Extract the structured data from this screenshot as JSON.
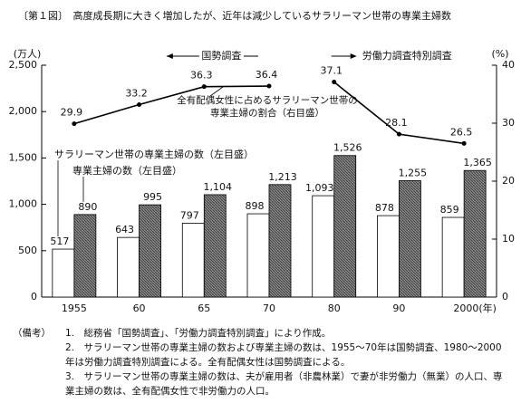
{
  "chart_data": {
    "type": "bar",
    "title": "〔第１図〕　高度成長期に大きく増加したが、近年は減少しているサラリーマン世帯の専業主婦数",
    "y_unit": "(万人)",
    "y2_unit": "(%)",
    "categories": [
      "1955",
      "60",
      "65",
      "70",
      "80",
      "90",
      "2000(年)"
    ],
    "series": [
      {
        "name": "サラリーマン世帯の専業主婦の数（左目盛）",
        "color": "#ffffff",
        "values": [
          517,
          643,
          797,
          898,
          1093,
          878,
          859
        ],
        "value_labels": [
          "517",
          "643",
          "797",
          "898",
          "1,093",
          "878",
          "859"
        ]
      },
      {
        "name": "専業主婦の数（左目盛）",
        "color": "#8a8a8a",
        "values": [
          890,
          995,
          1104,
          1213,
          1526,
          1255,
          1365
        ],
        "value_labels": [
          "890",
          "995",
          "1,104",
          "1,213",
          "1,526",
          "1,255",
          "1,365"
        ]
      },
      {
        "name": "全有配偶女性に占めるサラリーマン世帯の専業主婦の割合（右目盛）",
        "type": "line",
        "axis": "y2",
        "color": "#000000",
        "values": [
          29.9,
          33.2,
          36.3,
          36.4,
          37.1,
          28.1,
          26.5
        ]
      }
    ],
    "ylim": [
      0,
      2500
    ],
    "yticks": [
      0,
      500,
      {
        "value": 1000,
        "label": "1,000"
      },
      {
        "value": 1500,
        "label": "1,500"
      },
      {
        "value": 2000,
        "label": "2,000"
      },
      {
        "value": 2500,
        "label": "2,500"
      }
    ],
    "y2lim": [
      0,
      40
    ],
    "y2ticks": [
      0,
      10,
      20,
      30,
      40
    ],
    "annotations": [
      {
        "text": "国勢調査",
        "categories": [
          0,
          1,
          2,
          3
        ]
      },
      {
        "text": "労働力調査特別調査",
        "categories": [
          4,
          5,
          6
        ]
      }
    ]
  },
  "notes": {
    "label": "（備考）",
    "items": [
      "1.　総務省「国勢調査」、「労働力調査特別調査」により作成。",
      "2.　サラリーマン世帯の専業主婦の数および専業主婦の数は、1955〜70年は国勢調査、1980〜2000年は労働力調査特別調査による。全有配偶女性は国勢調査による。",
      "3.　サラリーマン世帯の専業主婦の数は、夫が雇用者（非農林業）で妻が非労働力（無業）の人口、専業主婦の数は、全有配偶女性で非労働力の人口。"
    ]
  }
}
